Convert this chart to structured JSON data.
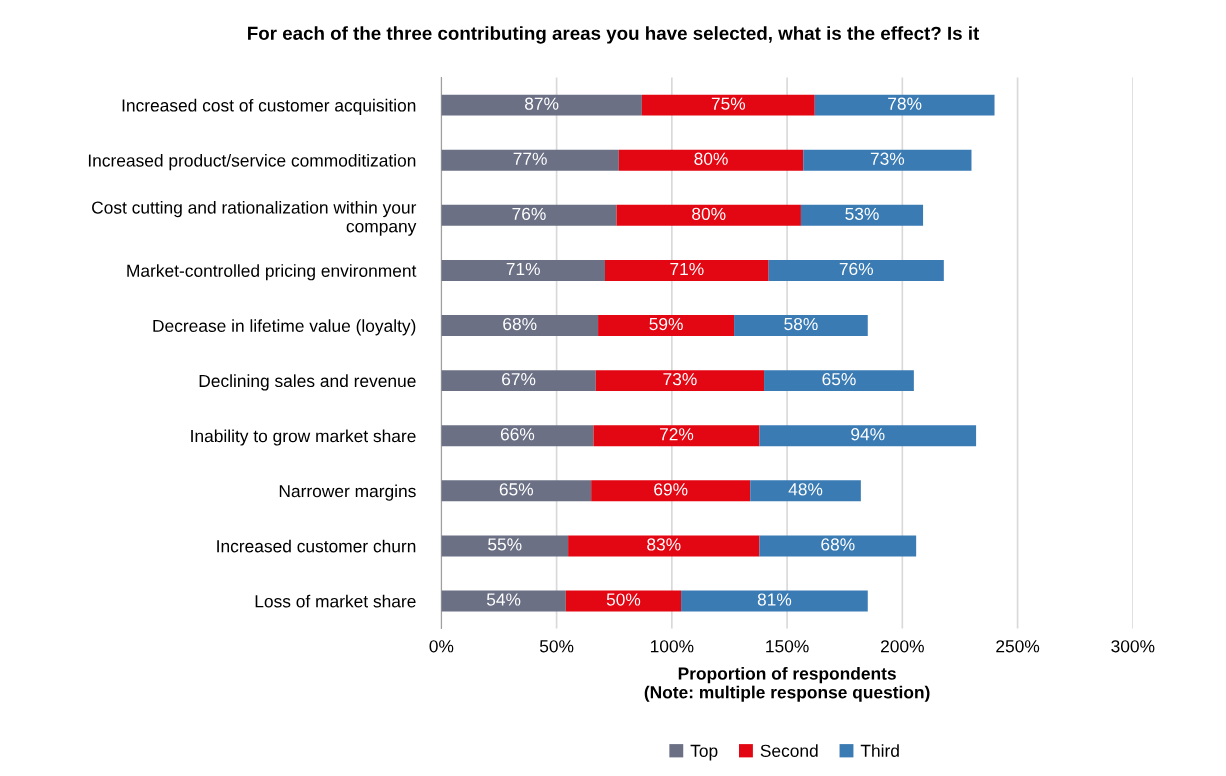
{
  "chart_data": {
    "type": "bar",
    "orientation": "horizontal",
    "stacked": true,
    "title": "For each of the three contributing areas you have selected, what is the effect? Is it",
    "xlabel": "Proportion of respondents\n(Note: multiple response question)",
    "categories": [
      "Increased cost of customer acquisition",
      "Increased product/service commoditization",
      "Cost cutting and rationalization within your\ncompany",
      "Market-controlled pricing environment",
      "Decrease in lifetime value (loyalty)",
      "Declining sales and revenue",
      "Inability to grow market share",
      "Narrower margins",
      "Increased customer churn",
      "Loss of market share"
    ],
    "series": [
      {
        "name": "Top",
        "color": "#6b7085",
        "values": [
          87,
          77,
          76,
          71,
          68,
          67,
          66,
          65,
          55,
          54
        ],
        "value_labels": [
          "87%",
          "77%",
          "76%",
          "71%",
          "68%",
          "67%",
          "66%",
          "65%",
          "55%",
          "54%"
        ]
      },
      {
        "name": "Second",
        "color": "#e30613",
        "values": [
          75,
          80,
          80,
          71,
          59,
          73,
          72,
          69,
          83,
          50
        ],
        "value_labels": [
          "75%",
          "80%",
          "80%",
          "71%",
          "59%",
          "73%",
          "72%",
          "69%",
          "83%",
          "50%"
        ]
      },
      {
        "name": "Third",
        "color": "#3a7bb4",
        "values": [
          78,
          73,
          53,
          76,
          58,
          65,
          94,
          48,
          68,
          81
        ],
        "value_labels": [
          "78%",
          "73%",
          "53%",
          "76%",
          "58%",
          "65%",
          "94%",
          "48%",
          "68%",
          "81%"
        ]
      }
    ],
    "xlim": [
      0,
      300
    ],
    "xticks": [
      {
        "value": 0,
        "label": "0%"
      },
      {
        "value": 50,
        "label": "50%"
      },
      {
        "value": 100,
        "label": "100%"
      },
      {
        "value": 150,
        "label": "150%"
      },
      {
        "value": 200,
        "label": "200%"
      },
      {
        "value": 250,
        "label": "250%"
      },
      {
        "value": 300,
        "label": "300%"
      }
    ],
    "grid": "x",
    "legend": "bottom"
  }
}
